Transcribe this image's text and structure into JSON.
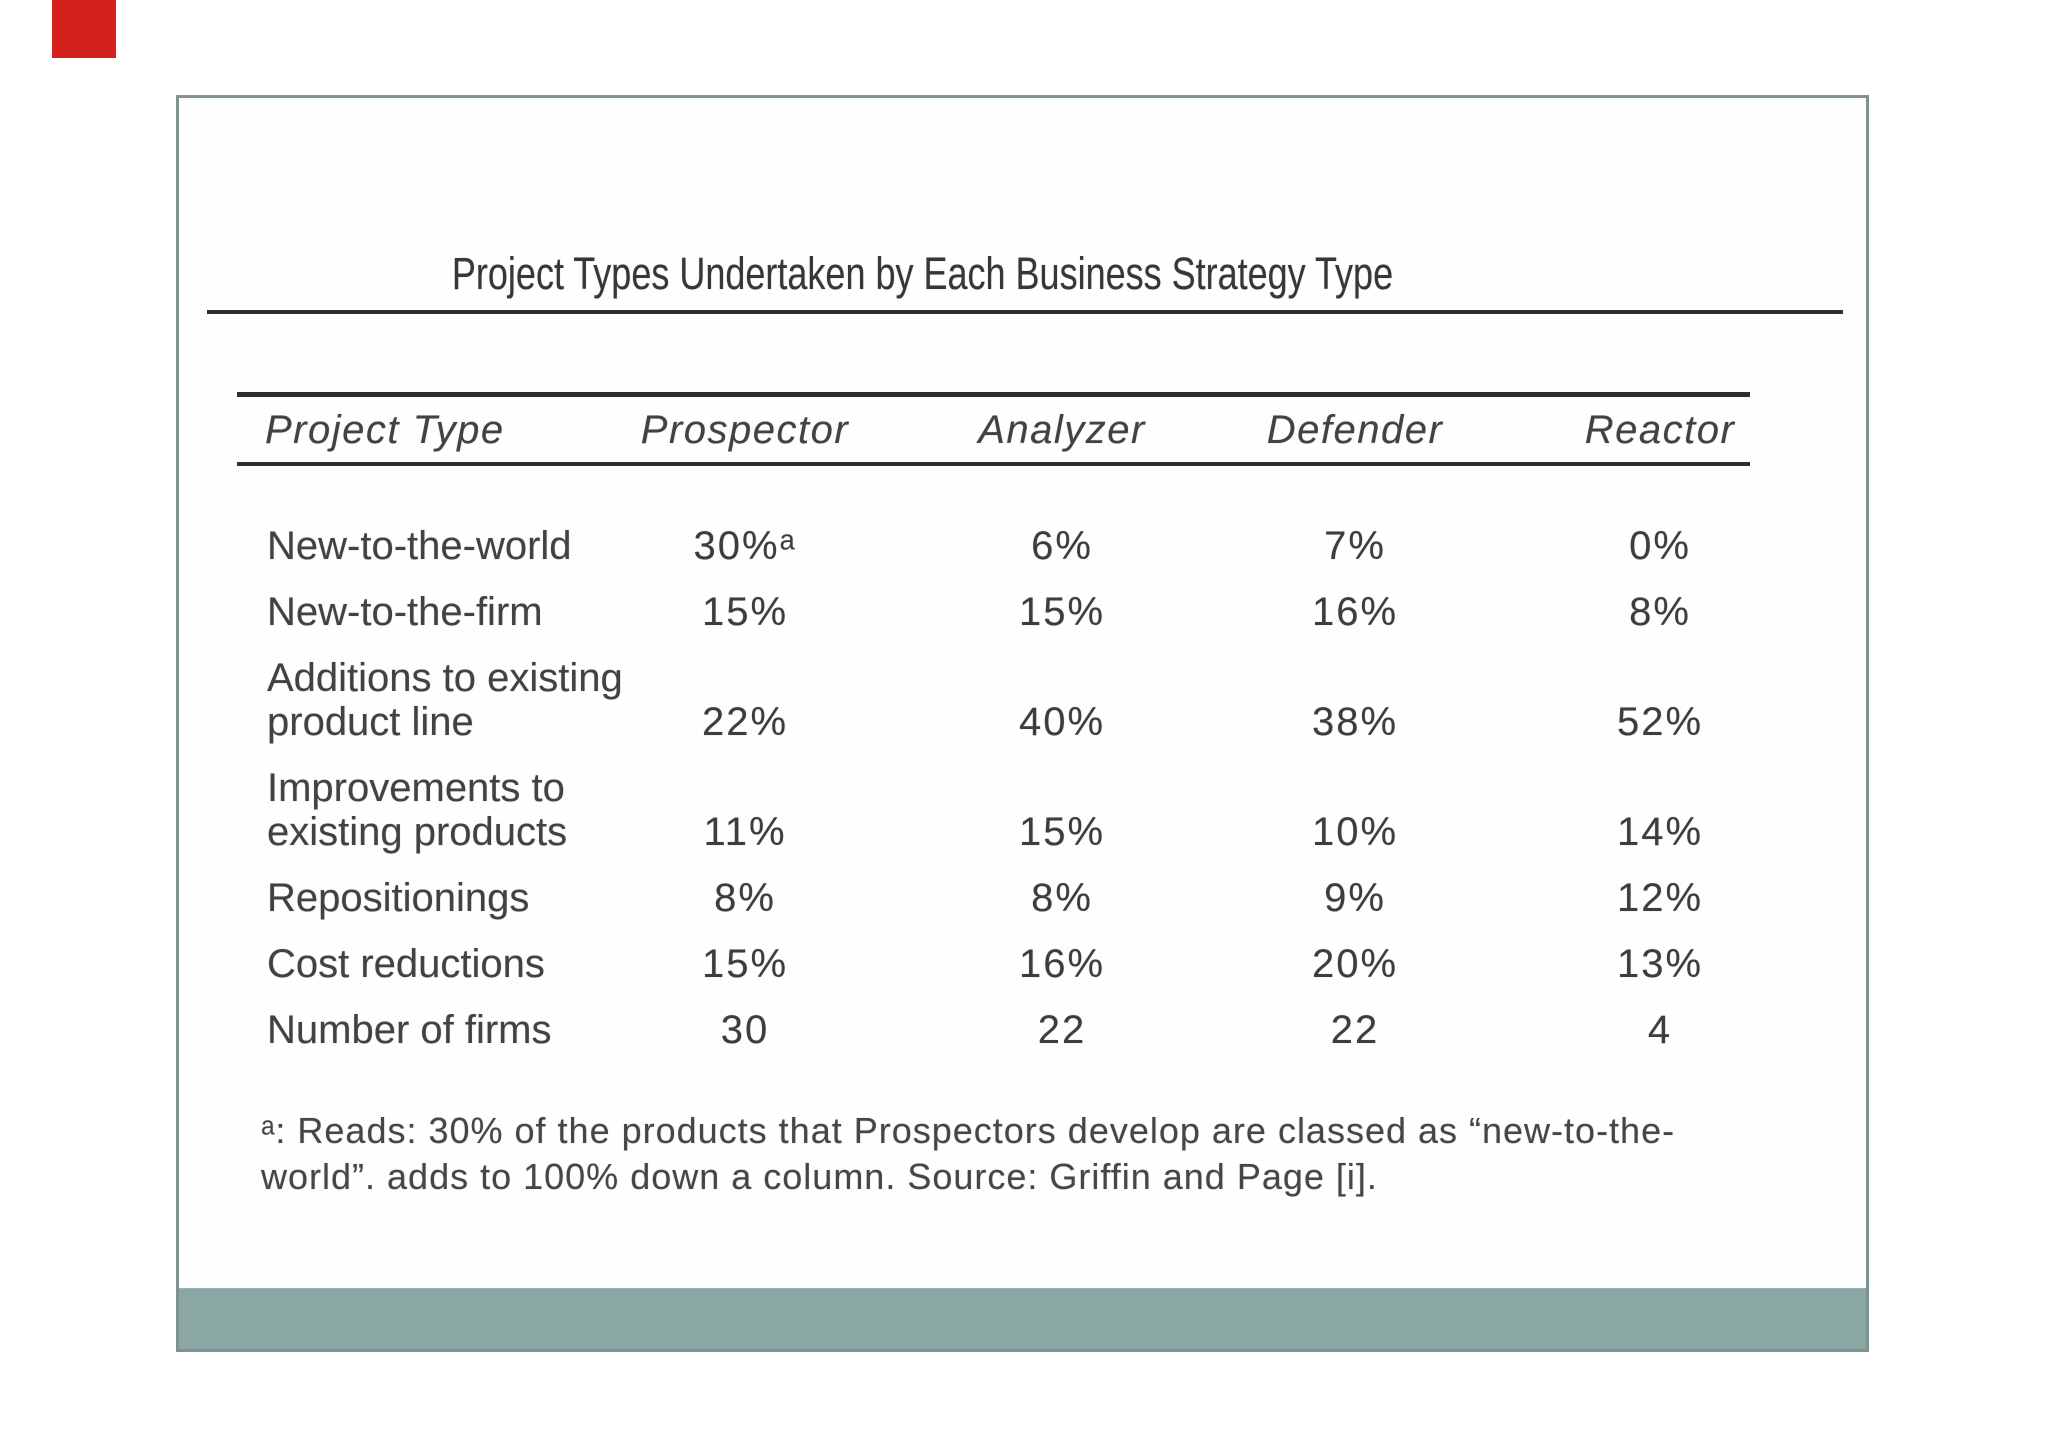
{
  "title": "Project Types Undertaken by Each Business Strategy Type",
  "table": {
    "columns": [
      "Project Type",
      "Prospector",
      "Analyzer",
      "Defender",
      "Reactor"
    ],
    "rows": [
      {
        "label": "New-to-the-world",
        "label2": "",
        "values": [
          "30%ᵃ",
          "6%",
          "7%",
          "0%"
        ]
      },
      {
        "label": "New-to-the-firm",
        "label2": "",
        "values": [
          "15%",
          "15%",
          "16%",
          "8%"
        ]
      },
      {
        "label": "Additions to existing",
        "label2": "product line",
        "values": [
          "22%",
          "40%",
          "38%",
          "52%"
        ]
      },
      {
        "label": "Improvements to",
        "label2": "existing products",
        "values": [
          "11%",
          "15%",
          "10%",
          "14%"
        ]
      },
      {
        "label": "Repositionings",
        "label2": "",
        "values": [
          "8%",
          "8%",
          "9%",
          "12%"
        ]
      },
      {
        "label": "Cost reductions",
        "label2": "",
        "values": [
          "15%",
          "16%",
          "20%",
          "13%"
        ]
      },
      {
        "label": "Number of firms",
        "label2": "",
        "values": [
          "30",
          "22",
          "22",
          "4"
        ]
      }
    ]
  },
  "footnote": {
    "lines": [
      "ᵃ: Reads: 30% of the products that Prospectors develop are classed as “new-to-the-",
      "world”. adds to 100% down a column. Source: Griffin and Page [i]."
    ]
  },
  "colors": {
    "text": "#424242",
    "rule": "#2e2e2e",
    "page_border": "#7e938f",
    "footer_band": "#8ba7a3",
    "red_tab": "#d2201a"
  }
}
